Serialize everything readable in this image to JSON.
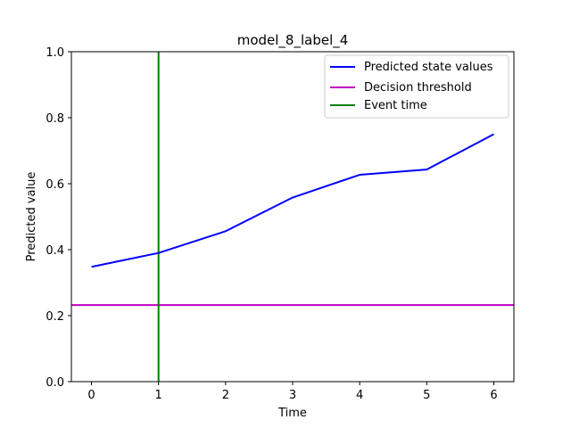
{
  "chart_data": {
    "type": "line",
    "title": "model_8_label_4",
    "xlabel": "Time",
    "ylabel": "Predicted value",
    "xlim": [
      -0.3,
      6.3
    ],
    "ylim": [
      0.0,
      1.0
    ],
    "xticks": [
      "0",
      "1",
      "2",
      "3",
      "4",
      "5",
      "6"
    ],
    "yticks": [
      "0.0",
      "0.2",
      "0.4",
      "0.6",
      "0.8",
      "1.0"
    ],
    "grid": false,
    "legend_position": "top-right",
    "series": [
      {
        "name": "Predicted state values",
        "color": "#0000ff",
        "x": [
          0,
          1,
          2,
          3,
          4,
          5,
          6
        ],
        "y": [
          0.348,
          0.39,
          0.456,
          0.558,
          0.627,
          0.643,
          0.75
        ]
      }
    ],
    "threshold": {
      "name": "Decision threshold",
      "color": "#bf00bf",
      "y": 0.232
    },
    "event": {
      "name": "Event time",
      "color": "#007f00",
      "x": 1
    }
  }
}
